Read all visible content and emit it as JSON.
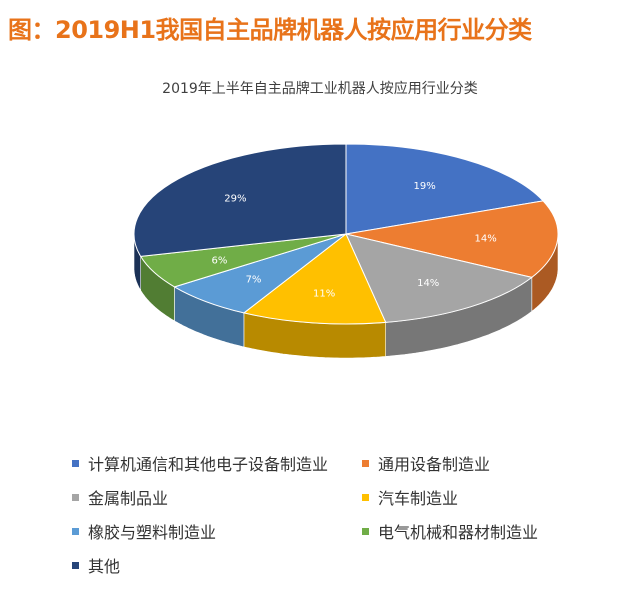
{
  "figure_title": "图：2019H1我国自主品牌机器人按应用行业分类",
  "chart_data": {
    "type": "pie",
    "title": "2019年上半年自主品牌工业机器人按应用行业分类",
    "legend_position": "bottom",
    "series": [
      {
        "name": "计算机通信和其他电子设备制造业",
        "value": 19,
        "label": "19%",
        "color": "#4472c4"
      },
      {
        "name": "通用设备制造业",
        "value": 14,
        "label": "14%",
        "color": "#ed7d31"
      },
      {
        "name": "金属制品业",
        "value": 14,
        "label": "14%",
        "color": "#a5a5a5"
      },
      {
        "name": "汽车制造业",
        "value": 11,
        "label": "11%",
        "color": "#ffc000"
      },
      {
        "name": "橡胶与塑料制造业",
        "value": 7,
        "label": "7%",
        "color": "#5b9bd5"
      },
      {
        "name": "电气机械和器材制造业",
        "value": 6,
        "label": "6%",
        "color": "#70ad47"
      },
      {
        "name": "其他",
        "value": 29,
        "label": "29%",
        "color": "#264478"
      }
    ]
  }
}
